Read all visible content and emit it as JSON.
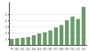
{
  "chart_data": {
    "type": "bar",
    "categories": [
      "79",
      "80",
      "81",
      "82",
      "83",
      "84",
      "85",
      "86",
      "87",
      "88",
      "89",
      "90",
      "91",
      "92"
    ],
    "values": [
      0.1,
      0.11,
      0.12,
      0.13,
      0.16,
      0.19,
      0.21,
      0.24,
      0.29,
      0.33,
      0.41,
      0.47,
      0.43,
      0.63
    ],
    "color": "#6a9a6a",
    "ylim": [
      0,
      0.7
    ],
    "yticks": [
      {
        "value": 0.1,
        "label": ".1"
      },
      {
        "value": 0.2,
        "label": ".2"
      },
      {
        "value": 0.3,
        "label": ".3"
      },
      {
        "value": 0.4,
        "label": ".4"
      },
      {
        "value": 0.5,
        "label": ".5"
      }
    ],
    "grid": true
  }
}
